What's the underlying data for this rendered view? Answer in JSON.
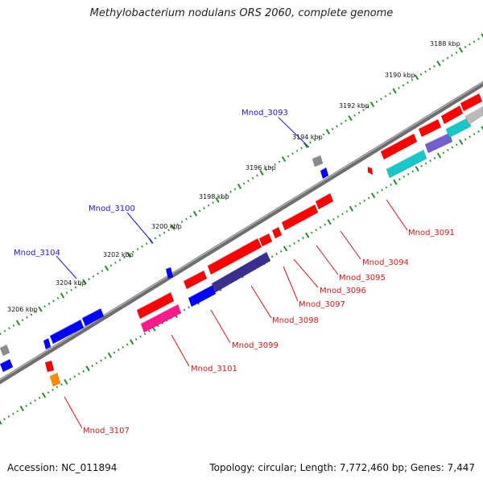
{
  "title": "Methylobacterium nodulans ORS 2060, complete genome",
  "footer": {
    "accession": "Accession: NC_011894",
    "summary": "Topology: circular; Length: 7,772,460 bp; Genes: 7,447"
  },
  "colors": {
    "backbone": "#808080",
    "tick": "#2a8a2a",
    "red": "#ff0000",
    "blue": "#0000ff",
    "navy": "#3a2f8f",
    "pink": "#ff1a8c",
    "cyan": "#18c8c8",
    "gray": "#8a8a8a",
    "orange": "#ff8c00",
    "label_blue": "#1a1acc",
    "label_red": "#cc1a1a"
  },
  "ruler_labels": [
    "3188 kbp",
    "3190 kbp",
    "3192 kbp",
    "3194 kbp",
    "3196 kbp",
    "3198 kbp",
    "3200 kbp",
    "3202 kbp",
    "3204 kbp",
    "3206 kbp"
  ],
  "gene_labels": [
    {
      "name": "Mnod_3093",
      "color": "label_blue"
    },
    {
      "name": "Mnod_3100",
      "color": "label_blue"
    },
    {
      "name": "Mnod_3104",
      "color": "label_blue"
    },
    {
      "name": "Mnod_3091",
      "color": "label_red"
    },
    {
      "name": "Mnod_3094",
      "color": "label_red"
    },
    {
      "name": "Mnod_3095",
      "color": "label_red"
    },
    {
      "name": "Mnod_3096",
      "color": "label_red"
    },
    {
      "name": "Mnod_3097",
      "color": "label_red"
    },
    {
      "name": "Mnod_3098",
      "color": "label_red"
    },
    {
      "name": "Mnod_3099",
      "color": "label_red"
    },
    {
      "name": "Mnod_3101",
      "color": "label_red"
    },
    {
      "name": "Mnod_3107",
      "color": "label_red"
    }
  ]
}
